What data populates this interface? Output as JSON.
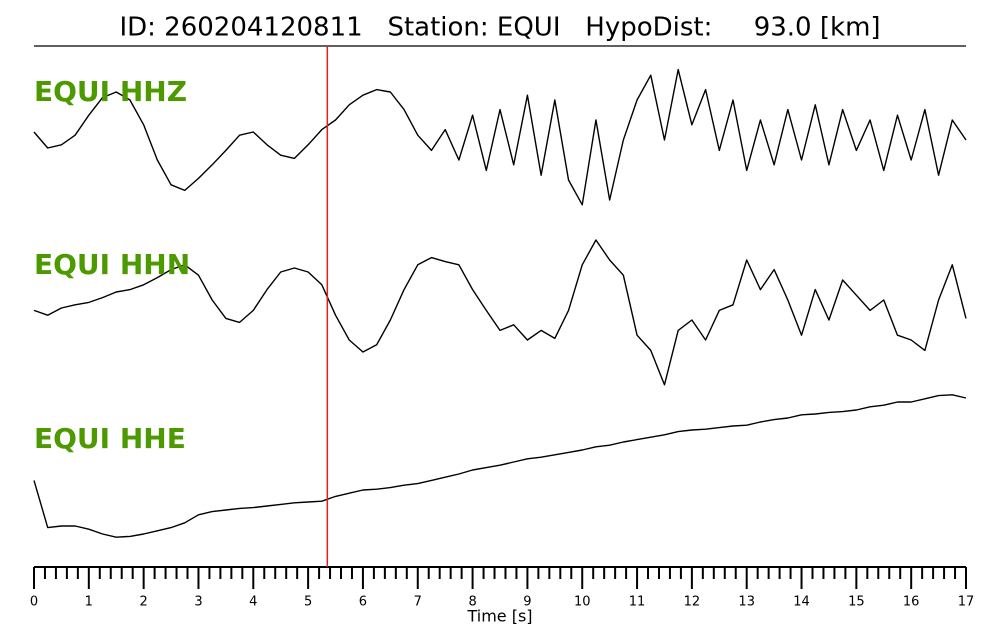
{
  "chart_data": {
    "type": "line",
    "title": "ID: 260204120811   Station: EQUI   HypoDist:     93.0 [km]",
    "xlabel": "Time [s]",
    "xlim": [
      0,
      17
    ],
    "xticks": [
      0,
      1,
      2,
      3,
      4,
      5,
      6,
      7,
      8,
      9,
      10,
      11,
      12,
      13,
      14,
      15,
      16,
      17
    ],
    "minor_divisions": 5,
    "ylim": [
      -1.1,
      1.1
    ],
    "marker": {
      "x": 5.35,
      "color": "#e0201b"
    },
    "x": [
      0,
      0.25,
      0.5,
      0.75,
      1,
      1.25,
      1.5,
      1.75,
      2,
      2.25,
      2.5,
      2.75,
      3,
      3.25,
      3.5,
      3.75,
      4,
      4.25,
      4.5,
      4.75,
      5,
      5.25,
      5.5,
      5.75,
      6,
      6.25,
      6.5,
      6.75,
      7,
      7.25,
      7.5,
      7.75,
      8,
      8.25,
      8.5,
      8.75,
      9,
      9.25,
      9.5,
      9.75,
      10,
      10.25,
      10.5,
      10.75,
      11,
      11.25,
      11.5,
      11.75,
      12,
      12.25,
      12.5,
      12.75,
      13,
      13.25,
      13.5,
      13.75,
      14,
      14.25,
      14.5,
      14.75,
      15,
      15.25,
      15.5,
      15.75,
      16,
      16.25,
      16.5,
      16.75,
      17
    ],
    "series": [
      {
        "name": "EQUI HHZ",
        "color": "#000000",
        "values": [
          0.1,
          -0.1,
          -0.06,
          0.06,
          0.31,
          0.53,
          0.6,
          0.5,
          0.19,
          -0.25,
          -0.56,
          -0.63,
          -0.48,
          -0.31,
          -0.13,
          0.06,
          0.1,
          -0.06,
          -0.19,
          -0.23,
          -0.06,
          0.13,
          0.25,
          0.44,
          0.56,
          0.63,
          0.6,
          0.38,
          0.06,
          -0.13,
          0.13,
          -0.25,
          0.31,
          -0.38,
          0.38,
          -0.31,
          0.56,
          -0.44,
          0.5,
          -0.5,
          -0.81,
          0.25,
          -0.75,
          0,
          0.5,
          0.81,
          0,
          0.88,
          0.19,
          0.63,
          -0.13,
          0.5,
          -0.38,
          0.25,
          -0.31,
          0.38,
          -0.25,
          0.44,
          -0.31,
          0.38,
          -0.13,
          0.25,
          -0.38,
          0.31,
          -0.25,
          0.38,
          -0.44,
          0.25,
          0
        ]
      },
      {
        "name": "EQUI HHN",
        "color": "#000000",
        "values": [
          -0.13,
          -0.19,
          -0.1,
          -0.06,
          -0.03,
          0.03,
          0.1,
          0.13,
          0.19,
          0.28,
          0.38,
          0.44,
          0.31,
          0,
          -0.23,
          -0.28,
          -0.13,
          0.13,
          0.35,
          0.4,
          0.35,
          0.19,
          -0.19,
          -0.5,
          -0.65,
          -0.56,
          -0.25,
          0.13,
          0.44,
          0.53,
          0.48,
          0.44,
          0.13,
          -0.13,
          -0.38,
          -0.31,
          -0.5,
          -0.38,
          -0.48,
          -0.13,
          0.44,
          0.75,
          0.5,
          0.31,
          -0.44,
          -0.63,
          -1.06,
          -0.38,
          -0.25,
          -0.5,
          -0.13,
          -0.06,
          0.5,
          0.13,
          0.38,
          0,
          -0.44,
          0.13,
          -0.25,
          0.25,
          0.06,
          -0.13,
          0,
          -0.44,
          -0.5,
          -0.63,
          0,
          0.44,
          -0.23
        ]
      },
      {
        "name": "EQUI HHE",
        "color": "#000000",
        "values": [
          -0.13,
          -0.72,
          -0.7,
          -0.7,
          -0.74,
          -0.8,
          -0.84,
          -0.83,
          -0.8,
          -0.76,
          -0.72,
          -0.66,
          -0.56,
          -0.52,
          -0.5,
          -0.48,
          -0.47,
          -0.45,
          -0.43,
          -0.41,
          -0.4,
          -0.39,
          -0.33,
          -0.29,
          -0.25,
          -0.24,
          -0.22,
          -0.19,
          -0.17,
          -0.13,
          -0.09,
          -0.05,
          0,
          0.03,
          0.06,
          0.1,
          0.14,
          0.16,
          0.19,
          0.22,
          0.25,
          0.29,
          0.31,
          0.35,
          0.38,
          0.41,
          0.44,
          0.48,
          0.5,
          0.51,
          0.53,
          0.55,
          0.56,
          0.6,
          0.63,
          0.65,
          0.69,
          0.7,
          0.72,
          0.73,
          0.75,
          0.79,
          0.81,
          0.85,
          0.85,
          0.89,
          0.93,
          0.94,
          0.9
        ]
      }
    ]
  }
}
